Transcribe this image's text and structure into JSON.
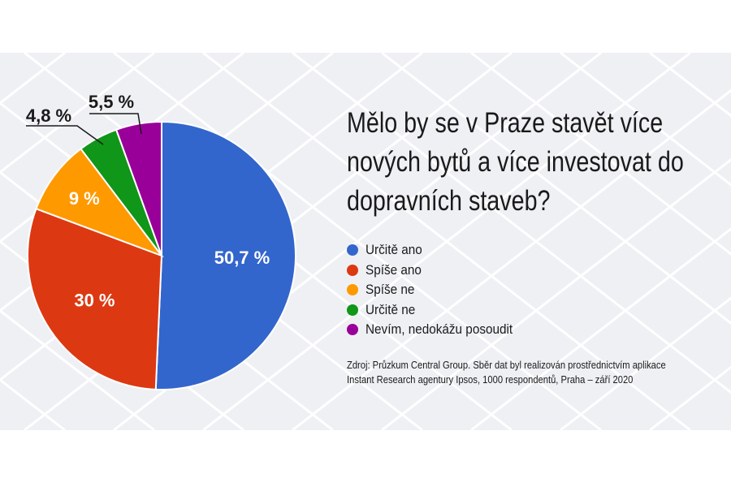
{
  "chart_data": {
    "type": "pie",
    "title": "Mělo by se v Praze stavět více nových bytů a více investovat do dopravních staveb?",
    "start_angle": "top, clockwise",
    "legend_position": "right",
    "slices": [
      {
        "label": "Určitě ano",
        "value": 50.7,
        "display": "50,7 %",
        "color": "#3366cc",
        "label_position": "inside"
      },
      {
        "label": "Spíše ano",
        "value": 30,
        "display": "30 %",
        "color": "#dc3912",
        "label_position": "inside"
      },
      {
        "label": "Spíše ne",
        "value": 9,
        "display": "9 %",
        "color": "#ff9900",
        "label_position": "inside"
      },
      {
        "label": "Určitě ne",
        "value": 4.8,
        "display": "4,8 %",
        "color": "#109618",
        "label_position": "outside"
      },
      {
        "label": "Nevím, nedokážu posoudit",
        "value": 5.5,
        "display": "5,5 %",
        "color": "#990099",
        "label_position": "outside"
      }
    ],
    "source": "Zdroj: Průzkum Central Group. Sběr dat byl realizován prostřednictvím aplikace Instant Research agentury Ipsos, 1000 respondentů, Praha – září 2020"
  }
}
